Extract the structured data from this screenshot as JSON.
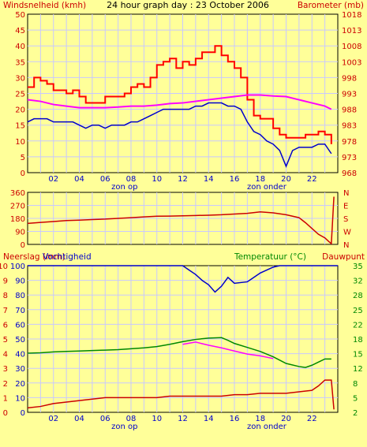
{
  "title": "24 hour graph day : 23 October 2006",
  "colors": {
    "background": "#FFFF99",
    "grid": "#C8C8FF",
    "red": "#FF0000",
    "darkred": "#CC0000",
    "blue": "#0000CC",
    "magenta": "#FF00FF",
    "green": "#008800",
    "label_red": "#CC0000",
    "label_green": "#008800",
    "label_blue": "#0000CC"
  },
  "chart_data": [
    {
      "type": "line",
      "panel": "wind",
      "left_label": "Windsnelheid (kmh)",
      "right_label": "Barometer (mb)",
      "left_ticks": [
        "0",
        "5",
        "10",
        "15",
        "20",
        "25",
        "30",
        "35",
        "40",
        "45",
        "50"
      ],
      "right_ticks": [
        "968",
        "973",
        "978",
        "983",
        "988",
        "993",
        "998",
        "1003",
        "1008",
        "1013",
        "1018"
      ],
      "x_ticks": [
        "02",
        "04",
        "06",
        "08",
        "10",
        "12",
        "14",
        "16",
        "18",
        "20",
        "22"
      ],
      "x_annotations": [
        {
          "x": 7.5,
          "text": "zon op"
        },
        {
          "x": 18.5,
          "text": "zon onder"
        }
      ],
      "ylim_left": [
        0,
        50
      ],
      "ylim_right": [
        968,
        1018
      ],
      "xlim": [
        0,
        24
      ],
      "series": [
        {
          "axis": "left",
          "values": [
            [
              0,
              27
            ],
            [
              0.5,
              30
            ],
            [
              1,
              29
            ],
            [
              1.5,
              28
            ],
            [
              2,
              26
            ],
            [
              2.5,
              26
            ],
            [
              3,
              25
            ],
            [
              3.5,
              26
            ],
            [
              4,
              24
            ],
            [
              4.5,
              22
            ],
            [
              5,
              22
            ],
            [
              5.5,
              22
            ],
            [
              6,
              24
            ],
            [
              6.5,
              24
            ],
            [
              7,
              24
            ],
            [
              7.5,
              25
            ],
            [
              8,
              27
            ],
            [
              8.5,
              28
            ],
            [
              9,
              27
            ],
            [
              9.5,
              30
            ],
            [
              10,
              34
            ],
            [
              10.5,
              35
            ],
            [
              11,
              36
            ],
            [
              11.5,
              33
            ],
            [
              12,
              35
            ],
            [
              12.5,
              34
            ],
            [
              13,
              36
            ],
            [
              13.5,
              38
            ],
            [
              14,
              38
            ],
            [
              14.5,
              40
            ],
            [
              15,
              37
            ],
            [
              15.5,
              35
            ],
            [
              16,
              33
            ],
            [
              16.5,
              30
            ],
            [
              17,
              23
            ],
            [
              17.5,
              18
            ],
            [
              18,
              17
            ],
            [
              18.5,
              17
            ],
            [
              19,
              14
            ],
            [
              19.5,
              12
            ],
            [
              20,
              11
            ],
            [
              20.5,
              11
            ],
            [
              21,
              11
            ],
            [
              21.5,
              12
            ],
            [
              22,
              12
            ],
            [
              22.5,
              13
            ],
            [
              23,
              12
            ],
            [
              23.5,
              9
            ]
          ]
        },
        {
          "axis": "left",
          "values": [
            [
              0,
              16
            ],
            [
              0.5,
              17
            ],
            [
              1,
              17
            ],
            [
              1.5,
              17
            ],
            [
              2,
              16
            ],
            [
              2.5,
              16
            ],
            [
              3,
              16
            ],
            [
              3.5,
              16
            ],
            [
              4,
              15
            ],
            [
              4.5,
              14
            ],
            [
              5,
              15
            ],
            [
              5.5,
              15
            ],
            [
              6,
              14
            ],
            [
              6.5,
              15
            ],
            [
              7,
              15
            ],
            [
              7.5,
              15
            ],
            [
              8,
              16
            ],
            [
              8.5,
              16
            ],
            [
              9,
              17
            ],
            [
              9.5,
              18
            ],
            [
              10,
              19
            ],
            [
              10.5,
              20
            ],
            [
              11,
              20
            ],
            [
              11.5,
              20
            ],
            [
              12,
              20
            ],
            [
              12.5,
              20
            ],
            [
              13,
              21
            ],
            [
              13.5,
              21
            ],
            [
              14,
              22
            ],
            [
              14.5,
              22
            ],
            [
              15,
              22
            ],
            [
              15.5,
              21
            ],
            [
              16,
              21
            ],
            [
              16.5,
              20
            ],
            [
              17,
              16
            ],
            [
              17.5,
              13
            ],
            [
              18,
              12
            ],
            [
              18.5,
              10
            ],
            [
              19,
              9
            ],
            [
              19.5,
              7
            ],
            [
              20,
              2
            ],
            [
              20.5,
              7
            ],
            [
              21,
              8
            ],
            [
              21.5,
              8
            ],
            [
              22,
              8
            ],
            [
              22.5,
              9
            ],
            [
              23,
              9
            ],
            [
              23.5,
              6
            ]
          ]
        },
        {
          "axis": "right",
          "values": [
            [
              0,
              991
            ],
            [
              1,
              990.5
            ],
            [
              2,
              989.5
            ],
            [
              3,
              989
            ],
            [
              4,
              988.5
            ],
            [
              5,
              988.5
            ],
            [
              6,
              988.5
            ],
            [
              7,
              988.7
            ],
            [
              8,
              989
            ],
            [
              9,
              989
            ],
            [
              10,
              989.3
            ],
            [
              11,
              989.8
            ],
            [
              12,
              990
            ],
            [
              13,
              990.5
            ],
            [
              14,
              991
            ],
            [
              15,
              991.5
            ],
            [
              16,
              992
            ],
            [
              17,
              992.5
            ],
            [
              18,
              992.5
            ],
            [
              19,
              992.2
            ],
            [
              20,
              992
            ],
            [
              21,
              991
            ],
            [
              22,
              990
            ],
            [
              23,
              989
            ],
            [
              23.5,
              988
            ]
          ]
        }
      ]
    },
    {
      "type": "line",
      "panel": "wind-direction",
      "left_ticks": [
        "0",
        "90",
        "180",
        "270",
        "360"
      ],
      "right_ticks": [
        "N",
        "W",
        "S",
        "E",
        "N"
      ],
      "ylim": [
        0,
        360
      ],
      "xlim": [
        0,
        24
      ],
      "series": [
        {
          "values": [
            [
              0,
              145
            ],
            [
              1,
              152
            ],
            [
              2,
              158
            ],
            [
              3,
              165
            ],
            [
              4,
              168
            ],
            [
              5,
              172
            ],
            [
              6,
              175
            ],
            [
              7,
              180
            ],
            [
              8,
              185
            ],
            [
              9,
              190
            ],
            [
              10,
              195
            ],
            [
              11,
              196
            ],
            [
              12,
              198
            ],
            [
              13,
              200
            ],
            [
              14,
              202
            ],
            [
              15,
              205
            ],
            [
              16,
              210
            ],
            [
              17,
              215
            ],
            [
              18,
              225
            ],
            [
              19,
              218
            ],
            [
              20,
              205
            ],
            [
              21,
              185
            ],
            [
              21.5,
              150
            ],
            [
              22,
              110
            ],
            [
              22.5,
              70
            ],
            [
              23,
              45
            ],
            [
              23.3,
              20
            ],
            [
              23.5,
              5
            ],
            [
              23.7,
              330
            ]
          ]
        }
      ]
    },
    {
      "type": "line",
      "panel": "rain-humidity-temperature",
      "left_label_1": "Neerslag (mm)",
      "left_label_2": "Vochtigheid",
      "right_label_1": "Temperatuur (°C)",
      "right_label_2": "Dauwpunt",
      "left_ticks_rain": [
        "0",
        "1",
        "2",
        "3",
        "4",
        "5",
        "6",
        "7",
        "8",
        "9",
        "10"
      ],
      "left_ticks_humidity": [
        "0",
        "10",
        "20",
        "30",
        "40",
        "50",
        "60",
        "70",
        "80",
        "90",
        "100"
      ],
      "right_ticks": [
        "2",
        "5",
        "8",
        "12",
        "15",
        "18",
        "22",
        "25",
        "28",
        "32",
        "35"
      ],
      "ylim_humidity": [
        0,
        100
      ],
      "ylim_temperature": [
        2,
        35
      ],
      "xlim": [
        0,
        24
      ],
      "series": [
        {
          "axis": "humidity",
          "values": [
            [
              0,
              100
            ],
            [
              12,
              100
            ],
            [
              12.5,
              97
            ],
            [
              13,
              94
            ],
            [
              13.5,
              90
            ],
            [
              14,
              87
            ],
            [
              14.5,
              82
            ],
            [
              15,
              86
            ],
            [
              15.5,
              92
            ],
            [
              16,
              88
            ],
            [
              17,
              89
            ],
            [
              17.5,
              92
            ],
            [
              18,
              95
            ],
            [
              18.5,
              97
            ],
            [
              19,
              99
            ],
            [
              19.5,
              100
            ],
            [
              24,
              100
            ]
          ]
        },
        {
          "axis": "temperature",
          "values": [
            [
              0,
              15.3
            ],
            [
              1,
              15.4
            ],
            [
              2,
              15.6
            ],
            [
              3,
              15.7
            ],
            [
              4,
              15.8
            ],
            [
              5,
              15.9
            ],
            [
              6,
              16
            ],
            [
              7,
              16.1
            ],
            [
              8,
              16.3
            ],
            [
              9,
              16.5
            ],
            [
              10,
              16.8
            ],
            [
              11,
              17.3
            ],
            [
              12,
              17.9
            ],
            [
              13,
              18.4
            ],
            [
              14,
              18.7
            ],
            [
              15,
              18.8
            ],
            [
              15.5,
              18.2
            ],
            [
              16,
              17.5
            ],
            [
              17,
              16.6
            ],
            [
              18,
              15.7
            ],
            [
              19,
              14.5
            ],
            [
              20,
              13
            ],
            [
              21,
              12.3
            ],
            [
              21.5,
              12.1
            ],
            [
              22,
              12.6
            ],
            [
              22.5,
              13.3
            ],
            [
              23,
              14
            ],
            [
              23.5,
              14
            ]
          ]
        },
        {
          "axis": "temperature",
          "values": [
            [
              12,
              17.3
            ],
            [
              13,
              17.8
            ],
            [
              14,
              17.1
            ],
            [
              15,
              16.5
            ],
            [
              16,
              15.8
            ],
            [
              17,
              15.1
            ],
            [
              18,
              14.7
            ],
            [
              19,
              14.1
            ]
          ]
        },
        {
          "axis": "rain",
          "values": [
            [
              0,
              0.3
            ],
            [
              1,
              0.4
            ],
            [
              2,
              0.6
            ],
            [
              3,
              0.7
            ],
            [
              4,
              0.8
            ],
            [
              5,
              0.9
            ],
            [
              6,
              1
            ],
            [
              7,
              1
            ],
            [
              8,
              1
            ],
            [
              9,
              1
            ],
            [
              10,
              1
            ],
            [
              11,
              1.1
            ],
            [
              12,
              1.1
            ],
            [
              13,
              1.1
            ],
            [
              14,
              1.1
            ],
            [
              15,
              1.1
            ],
            [
              16,
              1.2
            ],
            [
              17,
              1.2
            ],
            [
              18,
              1.3
            ],
            [
              19,
              1.3
            ],
            [
              20,
              1.3
            ],
            [
              21,
              1.4
            ],
            [
              22,
              1.5
            ],
            [
              22.5,
              1.8
            ],
            [
              23,
              2.2
            ],
            [
              23.5,
              2.2
            ],
            [
              23.7,
              0.2
            ]
          ]
        }
      ]
    }
  ]
}
